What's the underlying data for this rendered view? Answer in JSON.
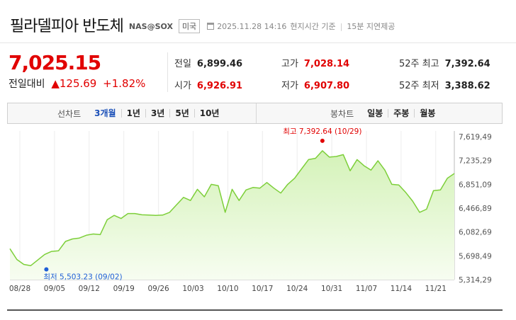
{
  "header": {
    "title": "필라델피아 반도체",
    "code": "NAS@SOX",
    "market": "미국",
    "datetime": "2025.11.28 14:16",
    "time_basis": "현지시간 기준",
    "delay": "15분 지연제공"
  },
  "quote": {
    "price": "7,025.15",
    "change_label": "전일대비",
    "change_arrow": "▲",
    "change_value": "125.69",
    "change_pct": "+1.82%",
    "stats": [
      {
        "key": "전일",
        "value": "6,899.46",
        "color": "dark"
      },
      {
        "key": "시가",
        "value": "6,926.91",
        "color": "red"
      },
      {
        "key": "고가",
        "value": "7,028.14",
        "color": "red"
      },
      {
        "key": "저가",
        "value": "6,907.80",
        "color": "red"
      },
      {
        "key": "52주 최고",
        "value": "7,392.64",
        "color": "dark"
      },
      {
        "key": "52주 최저",
        "value": "3,388.62",
        "color": "dark"
      }
    ]
  },
  "controls": {
    "line_label": "선차트",
    "line_options": [
      "3개월",
      "1년",
      "3년",
      "5년",
      "10년"
    ],
    "line_active": "3개월",
    "candle_label": "봉차트",
    "candle_options": [
      "일봉",
      "주봉",
      "월봉"
    ]
  },
  "colors": {
    "accent_red": "#e10000",
    "line_green": "#7dcf3a",
    "fill_green": "#d4f2b8",
    "low_blue": "#1f5fd6"
  },
  "chart_data": {
    "type": "area",
    "title": "",
    "xlabel": "",
    "ylabel": "",
    "x_ticks": [
      "08/28",
      "09/05",
      "09/12",
      "09/19",
      "09/26",
      "10/03",
      "10/10",
      "10/17",
      "10/24",
      "10/31",
      "11/07",
      "11/14",
      "11/21"
    ],
    "y_ticks": [
      5314.29,
      5698.49,
      6082.69,
      6466.89,
      6851.09,
      7235.29,
      7619.49
    ],
    "y_tick_labels": [
      "5,314,29",
      "5,698,49",
      "6,082,69",
      "6,466,89",
      "6,851,09",
      "7,235,29",
      "7,619,49"
    ],
    "ylim": [
      5314.29,
      7619.49
    ],
    "grid": "vertical",
    "series": [
      {
        "values": [
          5813,
          5640,
          5560,
          5540,
          5630,
          5720,
          5770,
          5780,
          5930,
          5970,
          5985,
          6030,
          6050,
          6040,
          6280,
          6350,
          6300,
          6380,
          6380,
          6360,
          6355,
          6350,
          6355,
          6400,
          6520,
          6640,
          6590,
          6770,
          6650,
          6850,
          6830,
          6400,
          6770,
          6590,
          6760,
          6800,
          6790,
          6880,
          6790,
          6710,
          6850,
          6950,
          7100,
          7250,
          7270,
          7392.64,
          7290,
          7300,
          7330,
          7070,
          7250,
          7150,
          7080,
          7230,
          7080,
          6850,
          6840,
          6720,
          6580,
          6400,
          6450,
          6750,
          6760,
          6950,
          7025.15
        ]
      }
    ],
    "annotations": [
      {
        "type": "high",
        "text": "최고 7,392.64 (10/29)",
        "index": 45,
        "value": 7392.64
      },
      {
        "type": "low",
        "text": "최저 5,503.23 (09/02)",
        "index": 3,
        "value": 5503.23
      }
    ]
  }
}
